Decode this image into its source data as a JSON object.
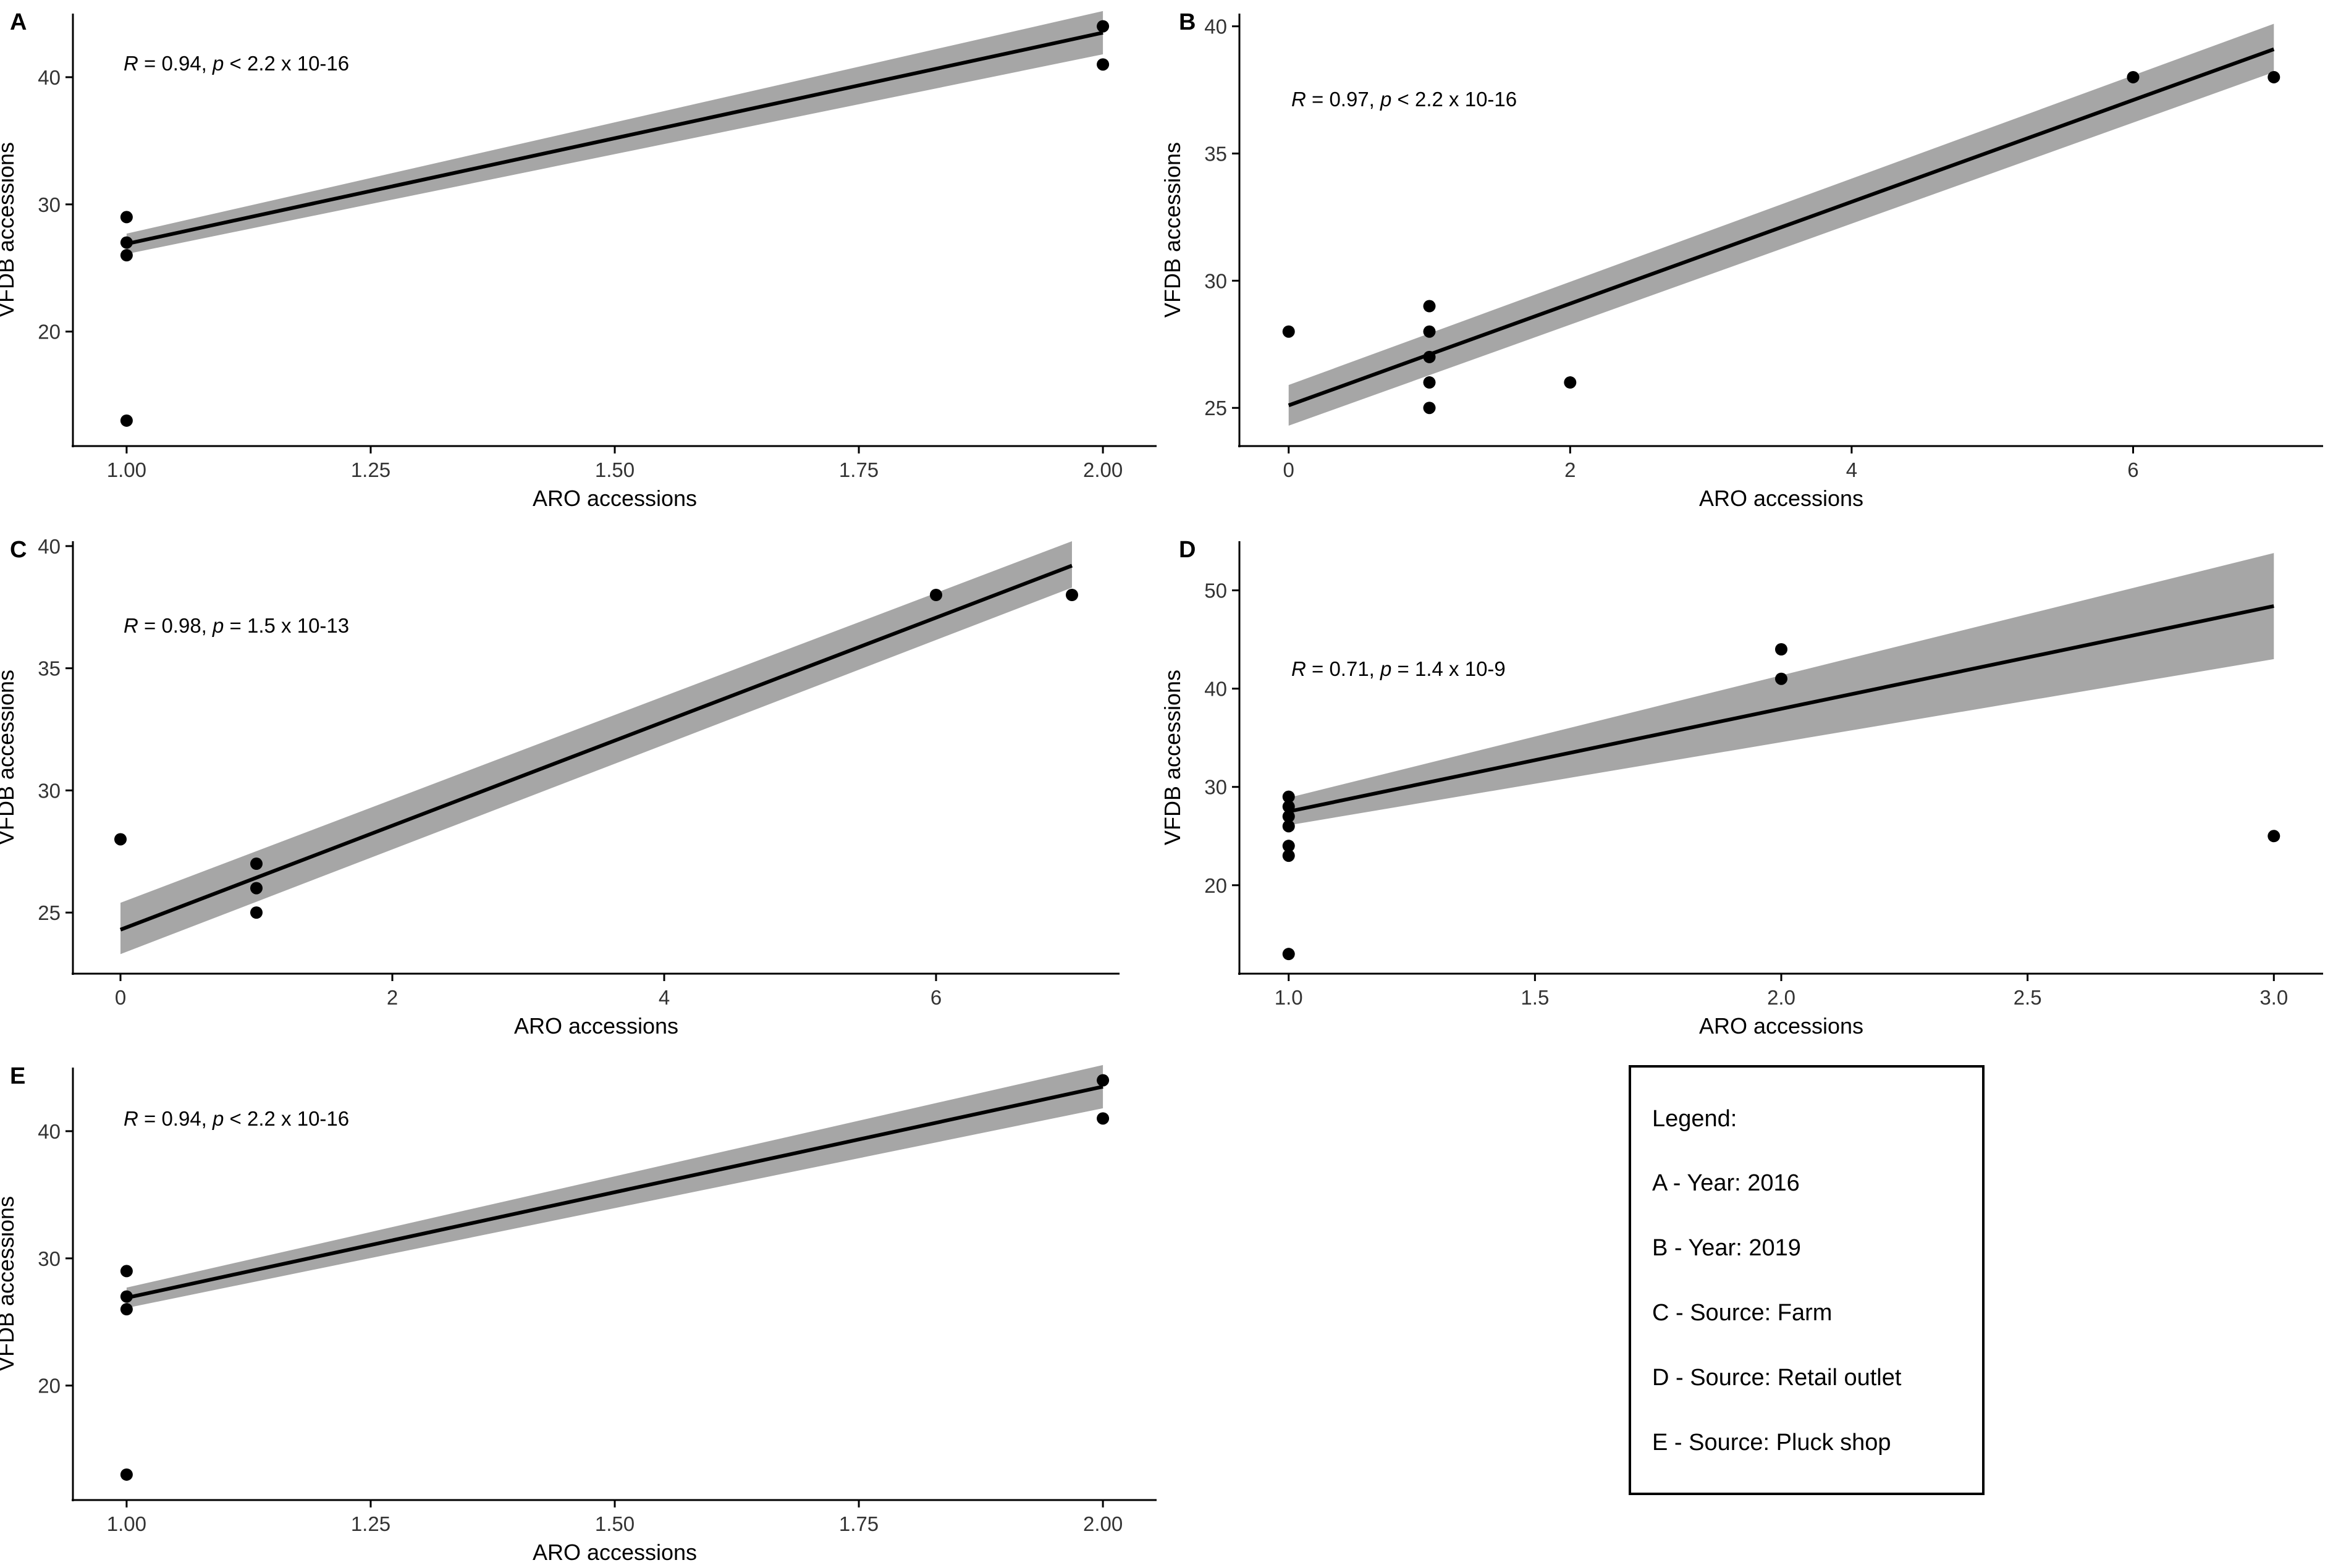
{
  "colors": {
    "band": "#a6a6a6",
    "line": "#000000",
    "point": "#000000",
    "axis": "#000000"
  },
  "legend": {
    "title": "Legend:",
    "entries": [
      "A - Year: 2016",
      "B - Year: 2019",
      "C - Source: Farm",
      "D - Source: Retail outlet",
      "E - Source: Pluck shop"
    ]
  },
  "chart_data": [
    {
      "panel": "A",
      "type": "scatter",
      "xlabel": "ARO accessions",
      "ylabel": "VFDB accessions",
      "xlim": [
        0.945,
        2.055
      ],
      "ylim": [
        11,
        45
      ],
      "xticks": [
        1.0,
        1.25,
        1.5,
        1.75,
        2.0
      ],
      "xticklabels": [
        "1.00",
        "1.25",
        "1.50",
        "1.75",
        "2.00"
      ],
      "yticks": [
        20,
        30,
        40
      ],
      "yticklabels": [
        "20",
        "30",
        "40"
      ],
      "points": [
        [
          1,
          29
        ],
        [
          1,
          27
        ],
        [
          1,
          26
        ],
        [
          1,
          13
        ],
        [
          2,
          44
        ],
        [
          2,
          41
        ]
      ],
      "fit": {
        "x": [
          1,
          2
        ],
        "y": [
          26.9,
          43.5
        ],
        "ci_lower": [
          26.1,
          41.8
        ],
        "ci_upper": [
          27.7,
          45.2
        ]
      },
      "stat": {
        "R": "0.94",
        "p": "< 2.2 x 10-16"
      }
    },
    {
      "panel": "B",
      "type": "scatter",
      "xlabel": "ARO accessions",
      "ylabel": "VFDB accessions",
      "xlim": [
        -0.35,
        7.35
      ],
      "ylim": [
        23.5,
        40.5
      ],
      "xticks": [
        0,
        2,
        4,
        6
      ],
      "xticklabels": [
        "0",
        "2",
        "4",
        "6"
      ],
      "yticks": [
        25,
        30,
        35,
        40
      ],
      "yticklabels": [
        "25",
        "30",
        "35",
        "40"
      ],
      "points": [
        [
          0,
          28
        ],
        [
          1,
          29
        ],
        [
          1,
          28
        ],
        [
          1,
          27
        ],
        [
          1,
          26
        ],
        [
          1,
          25
        ],
        [
          2,
          26
        ],
        [
          6,
          38
        ],
        [
          7,
          38
        ]
      ],
      "fit": {
        "x": [
          0,
          7
        ],
        "y": [
          25.1,
          39.1
        ],
        "ci_lower": [
          24.3,
          38.2
        ],
        "ci_upper": [
          25.9,
          40.1
        ]
      },
      "stat": {
        "R": "0.97",
        "p": "< 2.2 x 10-16"
      }
    },
    {
      "panel": "C",
      "type": "scatter",
      "xlabel": "ARO accessions",
      "ylabel": "VFDB accessions",
      "xlim": [
        -0.35,
        7.35
      ],
      "ylim": [
        22.5,
        40.2
      ],
      "xticks": [
        0,
        2,
        4,
        6
      ],
      "xticklabels": [
        "0",
        "2",
        "4",
        "6"
      ],
      "yticks": [
        25,
        30,
        35,
        40
      ],
      "yticklabels": [
        "25",
        "30",
        "35",
        "40"
      ],
      "points": [
        [
          0,
          28
        ],
        [
          1,
          27
        ],
        [
          1,
          26
        ],
        [
          1,
          25
        ],
        [
          6,
          38
        ],
        [
          7,
          38
        ]
      ],
      "fit": {
        "x": [
          0,
          7
        ],
        "y": [
          24.3,
          39.2
        ],
        "ci_lower": [
          23.3,
          38.3
        ],
        "ci_upper": [
          25.4,
          40.2
        ]
      },
      "stat": {
        "R": "0.98",
        "p": "= 1.5 x 10-13"
      }
    },
    {
      "panel": "D",
      "type": "scatter",
      "xlabel": "ARO accessions",
      "ylabel": "VFDB accessions",
      "xlim": [
        0.9,
        3.1
      ],
      "ylim": [
        11,
        55
      ],
      "xticks": [
        1.0,
        1.5,
        2.0,
        2.5,
        3.0
      ],
      "xticklabels": [
        "1.0",
        "1.5",
        "2.0",
        "2.5",
        "3.0"
      ],
      "yticks": [
        20,
        30,
        40,
        50
      ],
      "yticklabels": [
        "20",
        "30",
        "40",
        "50"
      ],
      "points": [
        [
          1,
          29
        ],
        [
          1,
          28
        ],
        [
          1,
          27
        ],
        [
          1,
          26
        ],
        [
          1,
          24
        ],
        [
          1,
          23
        ],
        [
          1,
          13
        ],
        [
          2,
          44
        ],
        [
          2,
          41
        ],
        [
          3,
          25
        ]
      ],
      "fit": {
        "x": [
          1,
          3
        ],
        "y": [
          27.5,
          48.4
        ],
        "ci_lower": [
          26.1,
          43.0
        ],
        "ci_upper": [
          28.9,
          53.8
        ]
      },
      "stat": {
        "R": "0.71",
        "p": "= 1.4 x 10-9"
      }
    },
    {
      "panel": "E",
      "type": "scatter",
      "xlabel": "ARO accessions",
      "ylabel": "VFDB accessions",
      "xlim": [
        0.945,
        2.055
      ],
      "ylim": [
        11,
        45
      ],
      "xticks": [
        1.0,
        1.25,
        1.5,
        1.75,
        2.0
      ],
      "xticklabels": [
        "1.00",
        "1.25",
        "1.50",
        "1.75",
        "2.00"
      ],
      "yticks": [
        20,
        30,
        40
      ],
      "yticklabels": [
        "20",
        "30",
        "40"
      ],
      "points": [
        [
          1,
          29
        ],
        [
          1,
          27
        ],
        [
          1,
          26
        ],
        [
          1,
          13
        ],
        [
          2,
          44
        ],
        [
          2,
          41
        ]
      ],
      "fit": {
        "x": [
          1,
          2
        ],
        "y": [
          26.9,
          43.5
        ],
        "ci_lower": [
          26.1,
          41.8
        ],
        "ci_upper": [
          27.7,
          45.2
        ]
      },
      "stat": {
        "R": "0.94",
        "p": "< 2.2 x 10-16"
      }
    }
  ]
}
